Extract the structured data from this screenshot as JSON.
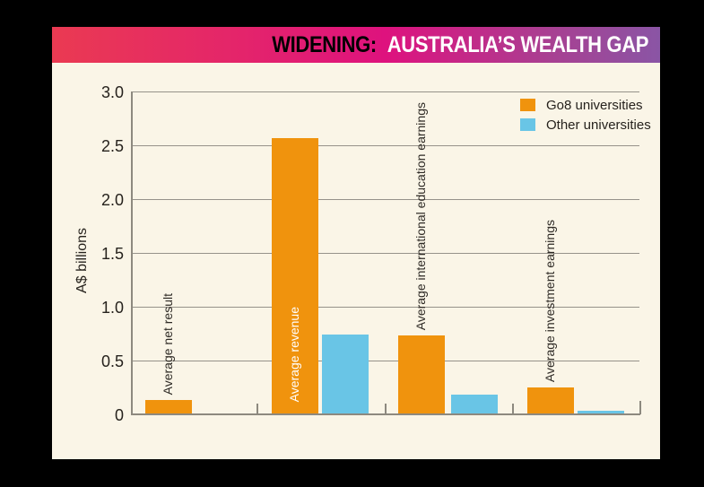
{
  "header": {
    "kicker": "WIDENING:",
    "title": "AUSTRALIA’S WEALTH GAP"
  },
  "chart_data": {
    "type": "bar",
    "title": "WIDENING: AUSTRALIA’S WEALTH GAP",
    "xlabel": "",
    "ylabel": "A$ billions",
    "ylim": [
      0,
      3.0
    ],
    "ytick_values": [
      0,
      0.5,
      1.0,
      1.5,
      2.0,
      2.5,
      3.0
    ],
    "ytick_labels": [
      "0",
      "0.5",
      "1.0",
      "1.5",
      "2.0",
      "2.5",
      "3.0"
    ],
    "grid": "horizontal",
    "legend_position": "top-right",
    "categories": [
      "Average net result",
      "Average revenue",
      "Average international education earnings",
      "Average investment earnings"
    ],
    "series": [
      {
        "name": "Go8 universities",
        "color": "#F0930D",
        "values": [
          0.13,
          2.57,
          0.73,
          0.25
        ]
      },
      {
        "name": "Other universities",
        "color": "#69C5E6",
        "values": [
          0.01,
          0.74,
          0.18,
          0.03
        ]
      }
    ]
  },
  "colors": {
    "background": "#000000",
    "panel": "#FAF5E7",
    "header_gradient_left": "#EA3A52",
    "header_gradient_mid": "#DE127E",
    "header_gradient_right": "#8A55A5",
    "grid": "#96928A",
    "axis": "#8D897F",
    "text": "#26221D",
    "bar_label_inside": "#FFFFFF"
  }
}
